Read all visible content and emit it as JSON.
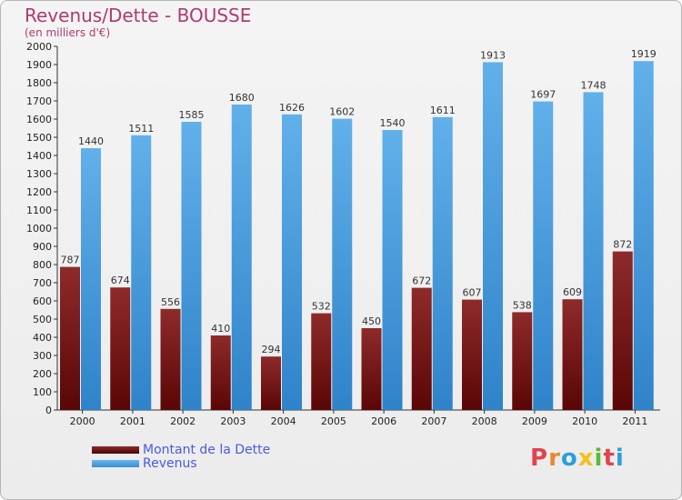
{
  "header": {
    "title": "Revenus/Dette - BOUSSE",
    "subtitle": "(en milliers d'€)"
  },
  "legend": {
    "dette": "Montant de la Dette",
    "revenus": "Revenus"
  },
  "logo": {
    "text": "Proxiti",
    "letters": [
      "P",
      "r",
      "o",
      "x",
      "i",
      "t",
      "i"
    ],
    "colors": [
      "#e0454c",
      "#e8892c",
      "#2aa0d8",
      "#f2c21a",
      "#5cb83a",
      "#e0454c",
      "#2aa0d8"
    ]
  },
  "colors": {
    "dette": "#7a1a1a",
    "revenus": "#5aa8e4",
    "title": "#b03a6e",
    "legend_text": "#4a5ae0"
  },
  "chart_data": {
    "type": "bar",
    "title": "Revenus/Dette - BOUSSE",
    "subtitle": "(en milliers d'€)",
    "categories": [
      "2000",
      "2001",
      "2002",
      "2003",
      "2004",
      "2005",
      "2006",
      "2007",
      "2008",
      "2009",
      "2010",
      "2011"
    ],
    "series": [
      {
        "name": "Montant de la Dette",
        "values": [
          787,
          674,
          556,
          410,
          294,
          532,
          450,
          672,
          607,
          538,
          609,
          872
        ]
      },
      {
        "name": "Revenus",
        "values": [
          1440,
          1511,
          1585,
          1680,
          1626,
          1602,
          1540,
          1611,
          1913,
          1697,
          1748,
          1919
        ]
      }
    ],
    "ylim": [
      0,
      2000
    ],
    "ytick_step": 100,
    "grid": false,
    "legend_position": "bottom-left"
  }
}
